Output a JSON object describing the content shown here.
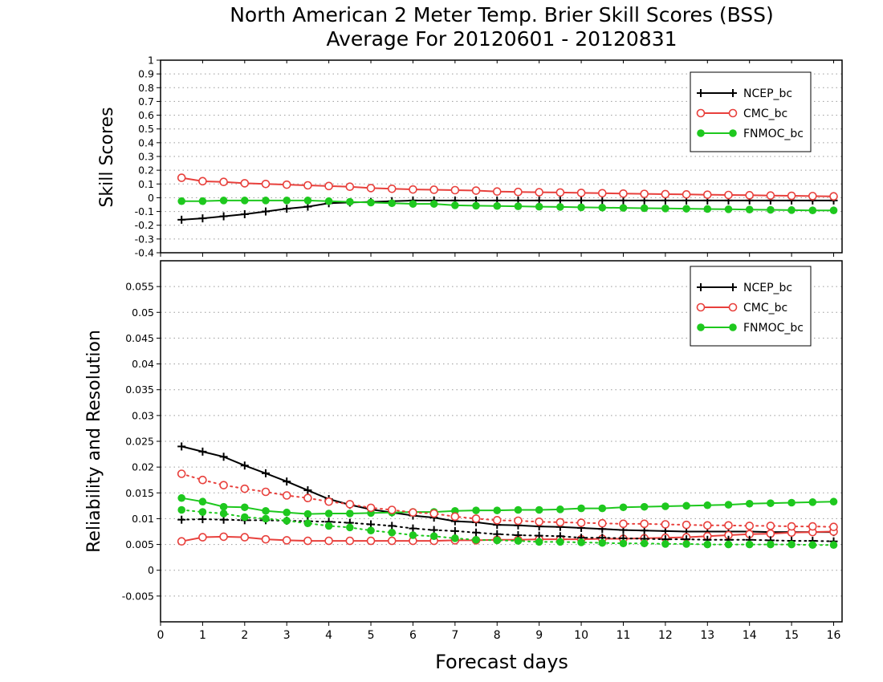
{
  "title_line1": "North American 2 Meter Temp. Brier Skill Scores (BSS)",
  "title_line2": "Average For 20120601 - 20120831",
  "colors": {
    "NCEP_bc": "#000000",
    "CMC_bc": "#e8403c",
    "FNMOC_bc": "#1ec81e"
  },
  "chart_data": [
    {
      "type": "line",
      "ylabel": "Skill Scores",
      "xlim": [
        0,
        16.2
      ],
      "ylim": [
        -0.4,
        1
      ],
      "yticks": [
        "1",
        "0.9",
        "0.8",
        "0.7",
        "0.6",
        "0.5",
        "0.4",
        "0.3",
        "0.2",
        "0.1",
        "0",
        "-0.1",
        "-0.2",
        "-0.3",
        "-0.4"
      ],
      "grid": true,
      "legend_position": "top-right",
      "x": [
        0.5,
        1,
        1.5,
        2,
        2.5,
        3,
        3.5,
        4,
        4.5,
        5,
        5.5,
        6,
        6.5,
        7,
        7.5,
        8,
        8.5,
        9,
        9.5,
        10,
        10.5,
        11,
        11.5,
        12,
        12.5,
        13,
        13.5,
        14,
        14.5,
        15,
        15.5,
        16
      ],
      "series": [
        {
          "name": "NCEP_bc",
          "marker": "plus",
          "values": [
            -0.16,
            -0.15,
            -0.135,
            -0.12,
            -0.1,
            -0.08,
            -0.065,
            -0.04,
            -0.035,
            -0.03,
            -0.025,
            -0.02,
            -0.02,
            -0.02,
            -0.02,
            -0.02,
            -0.02,
            -0.02,
            -0.02,
            -0.02,
            -0.02,
            -0.02,
            -0.02,
            -0.02,
            -0.02,
            -0.02,
            -0.02,
            -0.02,
            -0.02,
            -0.02,
            -0.02,
            -0.02
          ]
        },
        {
          "name": "CMC_bc",
          "marker": "open-circle",
          "values": [
            0.145,
            0.12,
            0.115,
            0.105,
            0.1,
            0.095,
            0.09,
            0.085,
            0.08,
            0.07,
            0.065,
            0.06,
            0.058,
            0.055,
            0.052,
            0.045,
            0.042,
            0.04,
            0.038,
            0.035,
            0.033,
            0.03,
            0.028,
            0.026,
            0.024,
            0.022,
            0.02,
            0.018,
            0.016,
            0.014,
            0.012,
            0.01
          ]
        },
        {
          "name": "FNMOC_bc",
          "marker": "filled-circle",
          "values": [
            -0.025,
            -0.025,
            -0.02,
            -0.02,
            -0.02,
            -0.02,
            -0.02,
            -0.025,
            -0.03,
            -0.035,
            -0.04,
            -0.045,
            -0.045,
            -0.055,
            -0.058,
            -0.06,
            -0.062,
            -0.065,
            -0.067,
            -0.07,
            -0.072,
            -0.074,
            -0.076,
            -0.078,
            -0.08,
            -0.082,
            -0.084,
            -0.086,
            -0.088,
            -0.09,
            -0.092,
            -0.092
          ]
        }
      ]
    },
    {
      "type": "line",
      "ylabel": "Reliability and Resolution",
      "xlabel": "Forecast days",
      "xlim": [
        0,
        16.2
      ],
      "ylim": [
        -0.01,
        0.06
      ],
      "yticks": [
        "0.055",
        "0.05",
        "0.045",
        "0.04",
        "0.035",
        "0.03",
        "0.025",
        "0.02",
        "0.015",
        "0.01",
        "0.005",
        "0",
        "-0.005"
      ],
      "xticks": [
        "0",
        "1",
        "2",
        "3",
        "4",
        "5",
        "6",
        "7",
        "8",
        "9",
        "10",
        "11",
        "12",
        "13",
        "14",
        "15",
        "16"
      ],
      "grid": true,
      "legend_position": "top-right",
      "x": [
        0.5,
        1,
        1.5,
        2,
        2.5,
        3,
        3.5,
        4,
        4.5,
        5,
        5.5,
        6,
        6.5,
        7,
        7.5,
        8,
        8.5,
        9,
        9.5,
        10,
        10.5,
        11,
        11.5,
        12,
        12.5,
        13,
        13.5,
        14,
        14.5,
        15,
        15.5,
        16
      ],
      "series": [
        {
          "name": "NCEP_bc",
          "marker": "plus",
          "style": "solid",
          "values": [
            0.024,
            0.023,
            0.022,
            0.0203,
            0.0188,
            0.0172,
            0.0155,
            0.0138,
            0.0127,
            0.0118,
            0.0112,
            0.0106,
            0.0102,
            0.0095,
            0.0093,
            0.0088,
            0.0087,
            0.0085,
            0.0084,
            0.0082,
            0.008,
            0.0078,
            0.0077,
            0.0076,
            0.0075,
            0.0075,
            0.0075,
            0.0075,
            0.0074,
            0.0074,
            0.0074,
            0.0074
          ]
        },
        {
          "name": "CMC_bc",
          "marker": "open-circle",
          "style": "solid",
          "values": [
            0.0056,
            0.0064,
            0.0065,
            0.0064,
            0.006,
            0.0058,
            0.0057,
            0.0057,
            0.0057,
            0.0057,
            0.0057,
            0.0057,
            0.0057,
            0.0058,
            0.0058,
            0.0059,
            0.0059,
            0.006,
            0.006,
            0.006,
            0.0061,
            0.0061,
            0.0062,
            0.0063,
            0.0064,
            0.0066,
            0.0068,
            0.007,
            0.0071,
            0.0073,
            0.0074,
            0.0075
          ]
        },
        {
          "name": "FNMOC_bc",
          "marker": "filled-circle",
          "style": "solid",
          "values": [
            0.014,
            0.0133,
            0.0123,
            0.0122,
            0.0115,
            0.0112,
            0.0109,
            0.011,
            0.011,
            0.0111,
            0.0112,
            0.0113,
            0.0113,
            0.0115,
            0.0116,
            0.0116,
            0.0117,
            0.0117,
            0.0118,
            0.012,
            0.012,
            0.0122,
            0.0123,
            0.0124,
            0.0125,
            0.0126,
            0.0127,
            0.0129,
            0.013,
            0.0131,
            0.0132,
            0.0133
          ]
        },
        {
          "name": "",
          "legend": false,
          "color_of": "NCEP_bc",
          "marker": "plus",
          "style": "dotted",
          "values": [
            0.0098,
            0.0099,
            0.0098,
            0.0097,
            0.0097,
            0.0096,
            0.0095,
            0.0094,
            0.0092,
            0.0089,
            0.0086,
            0.0081,
            0.0078,
            0.0076,
            0.0073,
            0.007,
            0.0068,
            0.0067,
            0.0066,
            0.0063,
            0.0063,
            0.0062,
            0.0061,
            0.006,
            0.006,
            0.0059,
            0.0059,
            0.0059,
            0.0058,
            0.0057,
            0.0057,
            0.0056
          ]
        },
        {
          "name": "",
          "legend": false,
          "color_of": "CMC_bc",
          "marker": "open-circle",
          "style": "dotted",
          "values": [
            0.0187,
            0.0175,
            0.0165,
            0.0158,
            0.0152,
            0.0145,
            0.014,
            0.0133,
            0.0128,
            0.0121,
            0.0117,
            0.0112,
            0.011,
            0.0104,
            0.01,
            0.0097,
            0.0096,
            0.0094,
            0.0093,
            0.0092,
            0.0091,
            0.009,
            0.009,
            0.0089,
            0.0088,
            0.0087,
            0.0087,
            0.0086,
            0.0086,
            0.0085,
            0.0085,
            0.0084
          ]
        },
        {
          "name": "",
          "legend": false,
          "color_of": "FNMOC_bc",
          "marker": "filled-circle",
          "style": "dotted",
          "values": [
            0.0117,
            0.0113,
            0.011,
            0.0103,
            0.01,
            0.0096,
            0.0091,
            0.0086,
            0.0083,
            0.0077,
            0.0073,
            0.0068,
            0.0066,
            0.0062,
            0.0059,
            0.0058,
            0.0057,
            0.0055,
            0.0055,
            0.0054,
            0.0053,
            0.0052,
            0.0052,
            0.0051,
            0.0051,
            0.005,
            0.005,
            0.005,
            0.005,
            0.005,
            0.0049,
            0.0049
          ]
        }
      ]
    }
  ]
}
